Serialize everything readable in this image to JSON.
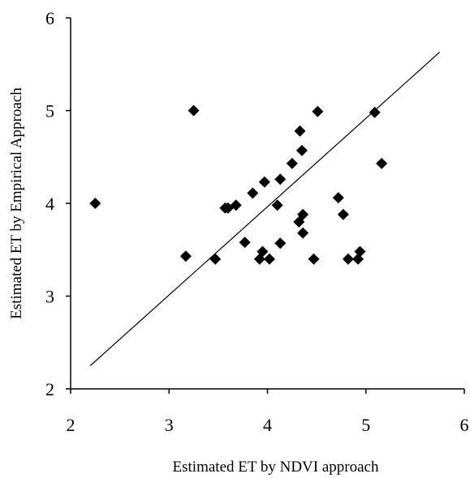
{
  "chart_data": {
    "type": "scatter",
    "title": "",
    "xlabel": "Estimated ET by NDVI approach",
    "ylabel": "Estimated ET by Empirical Approach",
    "xlim": [
      2,
      6
    ],
    "ylim": [
      2,
      6
    ],
    "xticks": [
      "2",
      "3",
      "4",
      "5",
      "6"
    ],
    "yticks": [
      "2",
      "3",
      "4",
      "5",
      "6"
    ],
    "grid": false,
    "legend": "none",
    "marker": "diamond",
    "marker_color": "#000000",
    "line_color": "#000000",
    "series": [
      {
        "points": [
          {
            "x": 2.25,
            "y": 4.0
          },
          {
            "x": 3.17,
            "y": 3.43
          },
          {
            "x": 3.25,
            "y": 5.0
          },
          {
            "x": 3.47,
            "y": 3.4
          },
          {
            "x": 3.57,
            "y": 3.95
          },
          {
            "x": 3.6,
            "y": 3.95
          },
          {
            "x": 3.68,
            "y": 3.98
          },
          {
            "x": 3.77,
            "y": 3.58
          },
          {
            "x": 3.85,
            "y": 4.11
          },
          {
            "x": 3.92,
            "y": 3.4
          },
          {
            "x": 3.95,
            "y": 3.48
          },
          {
            "x": 3.97,
            "y": 4.23
          },
          {
            "x": 4.02,
            "y": 3.4
          },
          {
            "x": 4.1,
            "y": 3.98
          },
          {
            "x": 4.13,
            "y": 4.26
          },
          {
            "x": 4.13,
            "y": 3.57
          },
          {
            "x": 4.25,
            "y": 4.43
          },
          {
            "x": 4.32,
            "y": 3.8
          },
          {
            "x": 4.33,
            "y": 4.78
          },
          {
            "x": 4.35,
            "y": 4.57
          },
          {
            "x": 4.36,
            "y": 3.88
          },
          {
            "x": 4.36,
            "y": 3.68
          },
          {
            "x": 4.47,
            "y": 3.4
          },
          {
            "x": 4.51,
            "y": 4.99
          },
          {
            "x": 4.72,
            "y": 4.06
          },
          {
            "x": 4.77,
            "y": 3.88
          },
          {
            "x": 4.82,
            "y": 3.4
          },
          {
            "x": 4.92,
            "y": 3.4
          },
          {
            "x": 4.94,
            "y": 3.48
          },
          {
            "x": 5.09,
            "y": 4.98
          },
          {
            "x": 5.16,
            "y": 4.43
          }
        ]
      }
    ],
    "reference_line": {
      "x": [
        2.2,
        5.75
      ],
      "y": [
        2.25,
        5.63
      ]
    }
  }
}
